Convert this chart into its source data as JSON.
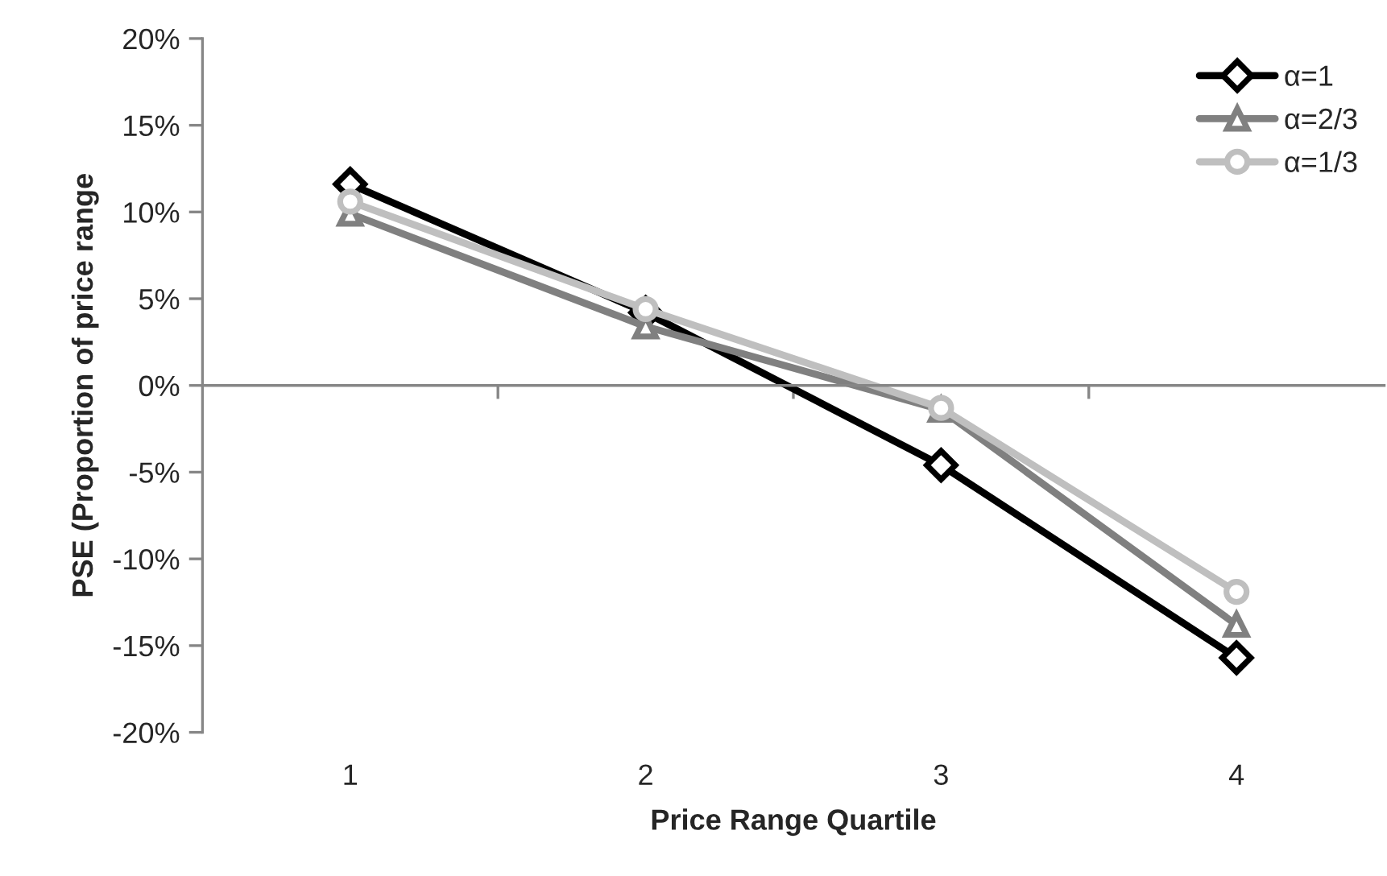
{
  "chart_data": {
    "type": "line",
    "xlabel": "Price Range Quartile",
    "ylabel": "PSE (Proportion of price range",
    "categories": [
      "1",
      "2",
      "3",
      "4"
    ],
    "series": [
      {
        "name": "α=1",
        "color": "#000000",
        "marker": "diamond",
        "values": [
          11.6,
          4.2,
          -4.6,
          -15.7
        ]
      },
      {
        "name": "α=2/3",
        "color": "#808080",
        "marker": "triangle",
        "values": [
          9.9,
          3.4,
          -1.4,
          -13.8
        ]
      },
      {
        "name": "α=1/3",
        "color": "#bfbfbf",
        "marker": "circle",
        "values": [
          10.6,
          4.4,
          -1.3,
          -11.9
        ]
      }
    ],
    "ylim": [
      -20,
      20
    ],
    "yticks": [
      {
        "value": -20,
        "label": "-20%"
      },
      {
        "value": -15,
        "label": "-15%"
      },
      {
        "value": -10,
        "label": "-10%"
      },
      {
        "value": -5,
        "label": "-5%"
      },
      {
        "value": 0,
        "label": "0%"
      },
      {
        "value": 5,
        "label": "5%"
      },
      {
        "value": 10,
        "label": "10%"
      },
      {
        "value": 15,
        "label": "15%"
      },
      {
        "value": 20,
        "label": "20%"
      }
    ],
    "legend": "top right",
    "line_style": "solid"
  }
}
